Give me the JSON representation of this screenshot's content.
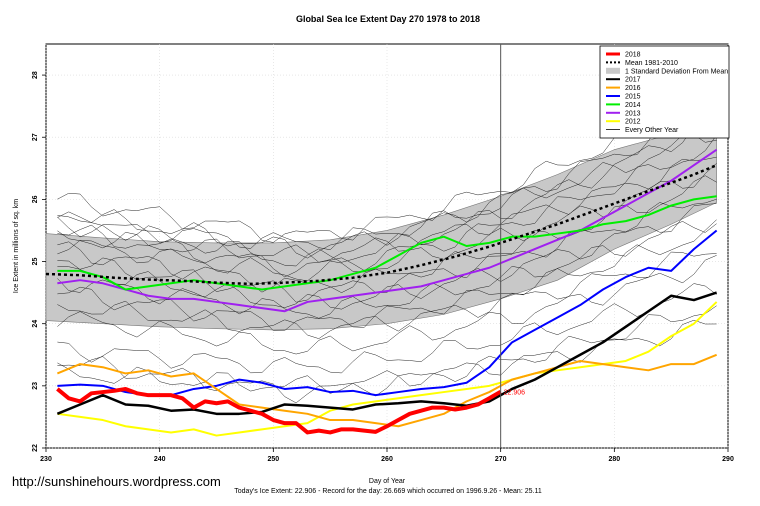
{
  "chart_data": {
    "type": "line",
    "title": "Global Sea Ice Extent Day 270 1978 to 2018",
    "xlabel": "Day of Year",
    "ylabel": "Ice Extent in millions of sq. km",
    "xlim": [
      230,
      290
    ],
    "ylim": [
      22,
      28.5
    ],
    "x_ticks": [
      230,
      240,
      250,
      260,
      270,
      280,
      290
    ],
    "y_ticks": [
      22,
      23,
      24,
      25,
      26,
      27,
      28
    ],
    "grid": true,
    "legend_position": "top-right",
    "vertical_marker_day": 270,
    "annotation": {
      "text": "22.906",
      "x": 270,
      "y": 22.906
    },
    "footer_text": "Today's Ice Extent: 22.906  - Record for the day: 26.669 which occurred on 1996.9.26  - Mean: 25.11",
    "watermark": "http://sunshinehours.wordpress.com",
    "legend": [
      {
        "label": "2018",
        "color": "#ff0000",
        "style": "solid-thick"
      },
      {
        "label": "Mean 1981-2010",
        "color": "#000000",
        "style": "dotted"
      },
      {
        "label": "1 Standard Deviation From Mean",
        "color": "#c8c8c8",
        "style": "band"
      },
      {
        "label": "2017",
        "color": "#000000",
        "style": "solid"
      },
      {
        "label": "2016",
        "color": "#ffa500",
        "style": "solid"
      },
      {
        "label": "2015",
        "color": "#0000ff",
        "style": "solid"
      },
      {
        "label": "2014",
        "color": "#00ee00",
        "style": "solid"
      },
      {
        "label": "2013",
        "color": "#a020f0",
        "style": "solid"
      },
      {
        "label": "2012",
        "color": "#ffff00",
        "style": "solid"
      },
      {
        "label": "Every Other Year",
        "color": "#000000",
        "style": "thin"
      }
    ],
    "band_x": [
      230,
      235,
      240,
      245,
      250,
      255,
      260,
      265,
      270,
      275,
      280,
      285,
      289
    ],
    "band_lower": [
      24.05,
      24.0,
      23.95,
      23.92,
      23.9,
      23.92,
      24.0,
      24.15,
      24.4,
      24.7,
      25.2,
      25.6,
      25.95
    ],
    "band_upper": [
      25.45,
      25.38,
      25.32,
      25.3,
      25.3,
      25.35,
      25.5,
      25.75,
      26.05,
      26.4,
      26.8,
      27.05,
      27.35
    ],
    "highlight_series": [
      {
        "name": "2018",
        "color": "#ff0000",
        "width": 4,
        "x": [
          231,
          232,
          233,
          234,
          235,
          236,
          237,
          238,
          239,
          240,
          241,
          242,
          243,
          244,
          245,
          246,
          247,
          248,
          249,
          250,
          251,
          252,
          253,
          254,
          255,
          256,
          257,
          258,
          259,
          260,
          261,
          262,
          263,
          264,
          265,
          266,
          267,
          268,
          269,
          270
        ],
        "y": [
          22.95,
          22.8,
          22.75,
          22.88,
          22.9,
          22.92,
          22.95,
          22.88,
          22.85,
          22.85,
          22.85,
          22.8,
          22.65,
          22.75,
          22.72,
          22.75,
          22.65,
          22.6,
          22.55,
          22.45,
          22.4,
          22.4,
          22.25,
          22.28,
          22.25,
          22.3,
          22.3,
          22.28,
          22.26,
          22.35,
          22.45,
          22.55,
          22.6,
          22.65,
          22.65,
          22.62,
          22.65,
          22.7,
          22.8,
          22.906
        ]
      },
      {
        "name": "Mean 1981-2010",
        "color": "#000000",
        "width": 2.5,
        "dash": "3,3",
        "x": [
          230,
          233,
          236,
          239,
          242,
          245,
          248,
          251,
          254,
          257,
          260,
          263,
          266,
          269,
          272,
          275,
          278,
          281,
          284,
          287,
          289
        ],
        "y": [
          24.8,
          24.78,
          24.74,
          24.71,
          24.69,
          24.66,
          24.64,
          24.66,
          24.69,
          24.74,
          24.82,
          24.94,
          25.08,
          25.24,
          25.42,
          25.6,
          25.8,
          26.0,
          26.2,
          26.4,
          26.55
        ]
      },
      {
        "name": "2017",
        "color": "#000000",
        "width": 2.5,
        "x": [
          231,
          233,
          235,
          237,
          239,
          241,
          243,
          245,
          247,
          249,
          251,
          253,
          255,
          257,
          259,
          261,
          263,
          265,
          267,
          269,
          271,
          273,
          275,
          277,
          279,
          281,
          283,
          285,
          287,
          289
        ],
        "y": [
          22.55,
          22.7,
          22.85,
          22.7,
          22.68,
          22.6,
          22.62,
          22.55,
          22.55,
          22.58,
          22.7,
          22.68,
          22.65,
          22.62,
          22.7,
          22.72,
          22.75,
          22.72,
          22.68,
          22.75,
          22.95,
          23.1,
          23.3,
          23.5,
          23.7,
          23.95,
          24.2,
          24.45,
          24.38,
          24.5
        ]
      },
      {
        "name": "2016",
        "color": "#ffa500",
        "width": 2,
        "x": [
          231,
          233,
          235,
          237,
          239,
          241,
          243,
          245,
          247,
          249,
          251,
          253,
          255,
          257,
          259,
          261,
          263,
          265,
          267,
          269,
          271,
          273,
          275,
          277,
          279,
          281,
          283,
          285,
          287,
          289
        ],
        "y": [
          23.2,
          23.35,
          23.3,
          23.2,
          23.25,
          23.15,
          23.2,
          22.95,
          22.7,
          22.65,
          22.6,
          22.55,
          22.45,
          22.45,
          22.4,
          22.35,
          22.45,
          22.55,
          22.75,
          22.9,
          23.1,
          23.2,
          23.3,
          23.4,
          23.35,
          23.3,
          23.25,
          23.35,
          23.35,
          23.5
        ]
      },
      {
        "name": "2015",
        "color": "#0000ff",
        "width": 2,
        "x": [
          231,
          233,
          235,
          237,
          239,
          241,
          243,
          245,
          247,
          249,
          251,
          253,
          255,
          257,
          259,
          261,
          263,
          265,
          267,
          269,
          271,
          273,
          275,
          277,
          279,
          281,
          283,
          285,
          287,
          289
        ],
        "y": [
          23.0,
          23.02,
          23.0,
          22.9,
          22.85,
          22.85,
          22.95,
          23.0,
          23.1,
          23.05,
          22.95,
          22.98,
          22.9,
          22.92,
          22.85,
          22.9,
          22.95,
          22.98,
          23.05,
          23.3,
          23.7,
          23.9,
          24.1,
          24.3,
          24.55,
          24.75,
          24.9,
          24.85,
          25.2,
          25.5
        ]
      },
      {
        "name": "2014",
        "color": "#00ee00",
        "width": 2,
        "x": [
          231,
          233,
          235,
          237,
          239,
          241,
          243,
          245,
          247,
          249,
          251,
          253,
          255,
          257,
          259,
          261,
          263,
          265,
          267,
          269,
          271,
          273,
          275,
          277,
          279,
          281,
          283,
          285,
          287,
          289
        ],
        "y": [
          24.85,
          24.85,
          24.75,
          24.55,
          24.6,
          24.65,
          24.7,
          24.65,
          24.6,
          24.55,
          24.6,
          24.65,
          24.7,
          24.8,
          24.9,
          25.1,
          25.3,
          25.4,
          25.25,
          25.3,
          25.4,
          25.4,
          25.45,
          25.5,
          25.6,
          25.65,
          25.75,
          25.9,
          26.0,
          26.05
        ]
      },
      {
        "name": "2013",
        "color": "#a020f0",
        "width": 2,
        "x": [
          231,
          233,
          235,
          237,
          239,
          241,
          243,
          245,
          247,
          249,
          251,
          253,
          255,
          257,
          259,
          261,
          263,
          265,
          267,
          269,
          271,
          273,
          275,
          277,
          279,
          281,
          283,
          285,
          287,
          289
        ],
        "y": [
          24.65,
          24.7,
          24.65,
          24.55,
          24.45,
          24.4,
          24.4,
          24.35,
          24.3,
          24.25,
          24.2,
          24.35,
          24.4,
          24.45,
          24.5,
          24.55,
          24.6,
          24.7,
          24.8,
          24.9,
          25.05,
          25.2,
          25.35,
          25.5,
          25.7,
          25.9,
          26.1,
          26.3,
          26.55,
          26.8
        ]
      },
      {
        "name": "2012",
        "color": "#ffff00",
        "width": 2,
        "x": [
          231,
          233,
          235,
          237,
          239,
          241,
          243,
          245,
          247,
          249,
          251,
          253,
          255,
          257,
          259,
          261,
          263,
          265,
          267,
          269,
          271,
          273,
          275,
          277,
          279,
          281,
          283,
          285,
          287,
          289
        ],
        "y": [
          22.55,
          22.5,
          22.45,
          22.35,
          22.3,
          22.25,
          22.3,
          22.2,
          22.25,
          22.3,
          22.35,
          22.4,
          22.6,
          22.7,
          22.75,
          22.8,
          22.85,
          22.9,
          22.95,
          23.0,
          23.1,
          23.2,
          23.25,
          23.3,
          23.35,
          23.4,
          23.55,
          23.8,
          24.0,
          24.35
        ]
      }
    ],
    "background_series": [
      {
        "name": "every-other-year",
        "y0": 26.0,
        "y1": 25.4,
        "y2": 27.7
      },
      {
        "name": "every-other-year",
        "y0": 25.8,
        "y1": 25.2,
        "y2": 27.5
      },
      {
        "name": "every-other-year",
        "y0": 25.7,
        "y1": 25.0,
        "y2": 27.3
      },
      {
        "name": "every-other-year",
        "y0": 25.6,
        "y1": 25.3,
        "y2": 27.1
      },
      {
        "name": "every-other-year",
        "y0": 25.5,
        "y1": 24.9,
        "y2": 26.9
      },
      {
        "name": "every-other-year",
        "y0": 25.4,
        "y1": 25.1,
        "y2": 26.7
      },
      {
        "name": "every-other-year",
        "y0": 25.3,
        "y1": 24.8,
        "y2": 26.5
      },
      {
        "name": "every-other-year",
        "y0": 25.2,
        "y1": 24.6,
        "y2": 26.3
      },
      {
        "name": "every-other-year",
        "y0": 25.0,
        "y1": 24.5,
        "y2": 26.1
      },
      {
        "name": "every-other-year",
        "y0": 24.9,
        "y1": 24.3,
        "y2": 25.9
      },
      {
        "name": "every-other-year",
        "y0": 24.7,
        "y1": 24.2,
        "y2": 25.7
      },
      {
        "name": "every-other-year",
        "y0": 24.5,
        "y1": 24.0,
        "y2": 25.5
      },
      {
        "name": "every-other-year",
        "y0": 24.3,
        "y1": 23.9,
        "y2": 25.2
      },
      {
        "name": "every-other-year",
        "y0": 24.1,
        "y1": 23.6,
        "y2": 25.0
      },
      {
        "name": "every-other-year",
        "y0": 23.6,
        "y1": 23.3,
        "y2": 24.6
      },
      {
        "name": "every-other-year",
        "y0": 23.4,
        "y1": 22.9,
        "y2": 24.3
      },
      {
        "name": "every-other-year",
        "y0": 23.2,
        "y1": 23.0,
        "y2": 24.0
      }
    ]
  }
}
